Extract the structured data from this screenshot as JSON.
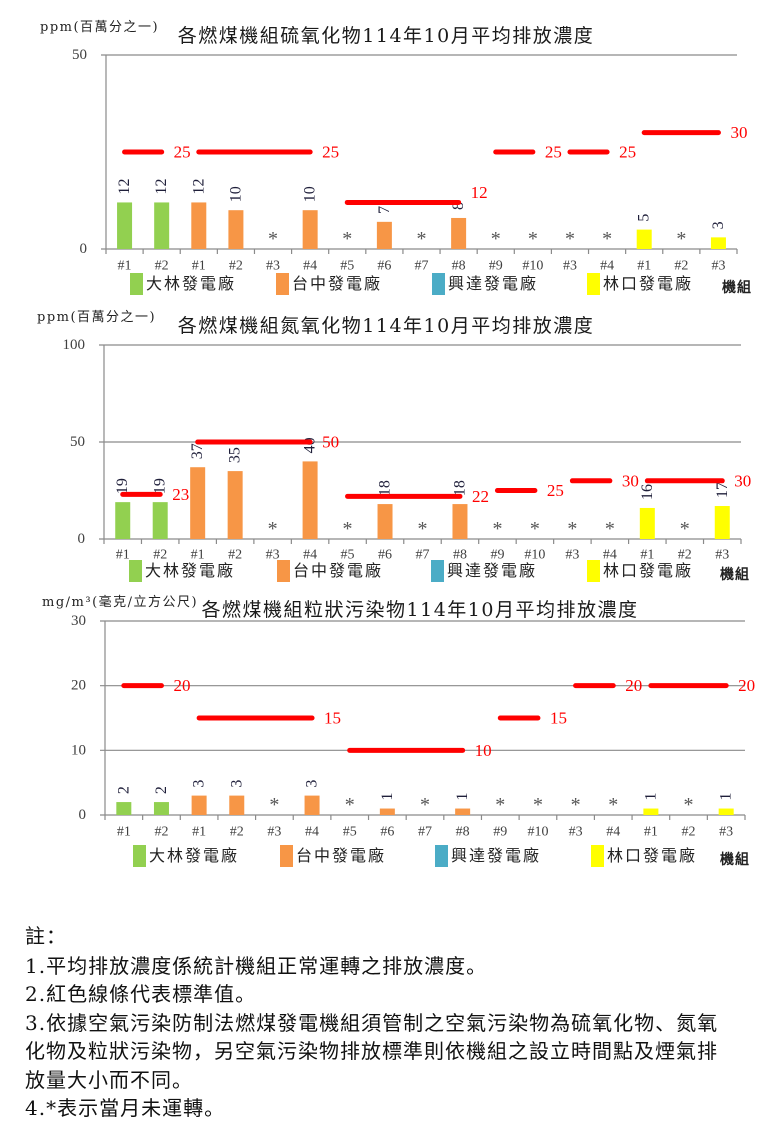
{
  "chart_data": [
    {
      "type": "bar",
      "title": "各燃煤機組硫氧化物114年10月平均排放濃度",
      "ylabel": "ppm(百萬分之一)",
      "xlabel": "機組",
      "ylim": [
        0,
        50
      ],
      "y_ticks": [
        0,
        50
      ],
      "grid": true,
      "legend_position": "bottom",
      "categories": [
        "#1",
        "#2",
        "#1",
        "#2",
        "#3",
        "#4",
        "#5",
        "#6",
        "#7",
        "#8",
        "#9",
        "#10",
        "#3",
        "#4",
        "#1",
        "#2",
        "#3"
      ],
      "series": [
        {
          "name": "大林發電廠",
          "color": "#92D050",
          "category_range": [
            0,
            1
          ],
          "values": [
            12,
            12
          ]
        },
        {
          "name": "台中發電廠",
          "color": "#F79646",
          "category_range": [
            2,
            11
          ],
          "values": [
            12,
            10,
            null,
            10,
            null,
            7,
            null,
            8,
            null,
            null
          ]
        },
        {
          "name": "興達發電廠",
          "color": "#4BACC6",
          "category_range": [
            12,
            13
          ],
          "values": [
            null,
            null
          ]
        },
        {
          "name": "林口發電廠",
          "color": "#FFFF00",
          "category_range": [
            14,
            16
          ],
          "values": [
            5,
            null,
            3
          ]
        }
      ],
      "not_operating_marker": "*",
      "standard_color": "#FF0000",
      "standards": [
        {
          "value": 25,
          "label": "25",
          "category_range": [
            0,
            1
          ]
        },
        {
          "value": 25,
          "label": "25",
          "category_range": [
            2,
            5
          ]
        },
        {
          "value": 12,
          "label": "12",
          "category_range": [
            6,
            9
          ],
          "label_offset_y": -10
        },
        {
          "value": 25,
          "label": "25",
          "category_range": [
            10,
            11
          ]
        },
        {
          "value": 25,
          "label": "25",
          "category_range": [
            12,
            13
          ]
        },
        {
          "value": 30,
          "label": "30",
          "category_range": [
            14,
            16
          ]
        }
      ]
    },
    {
      "type": "bar",
      "title": "各燃煤機組氮氧化物114年10月平均排放濃度",
      "ylabel": "ppm(百萬分之一)",
      "xlabel": "機組",
      "ylim": [
        0,
        100
      ],
      "y_ticks": [
        0,
        50,
        100
      ],
      "grid": true,
      "legend_position": "bottom",
      "categories": [
        "#1",
        "#2",
        "#1",
        "#2",
        "#3",
        "#4",
        "#5",
        "#6",
        "#7",
        "#8",
        "#9",
        "#10",
        "#3",
        "#4",
        "#1",
        "#2",
        "#3"
      ],
      "series": [
        {
          "name": "大林發電廠",
          "color": "#92D050",
          "category_range": [
            0,
            1
          ],
          "values": [
            19,
            19
          ]
        },
        {
          "name": "台中發電廠",
          "color": "#F79646",
          "category_range": [
            2,
            11
          ],
          "values": [
            37,
            35,
            null,
            40,
            null,
            18,
            null,
            18,
            null,
            null
          ]
        },
        {
          "name": "興達發電廠",
          "color": "#4BACC6",
          "category_range": [
            12,
            13
          ],
          "values": [
            null,
            null
          ]
        },
        {
          "name": "林口發電廠",
          "color": "#FFFF00",
          "category_range": [
            14,
            16
          ],
          "values": [
            16,
            null,
            17
          ]
        }
      ],
      "not_operating_marker": "*",
      "standard_color": "#FF0000",
      "standards": [
        {
          "value": 23,
          "label": "23",
          "category_range": [
            0,
            1
          ]
        },
        {
          "value": 50,
          "label": "50",
          "category_range": [
            2,
            5
          ]
        },
        {
          "value": 22,
          "label": "22",
          "category_range": [
            6,
            9
          ]
        },
        {
          "value": 25,
          "label": "25",
          "category_range": [
            10,
            11
          ]
        },
        {
          "value": 30,
          "label": "30",
          "category_range": [
            12,
            13
          ]
        },
        {
          "value": 30,
          "label": "30",
          "category_range": [
            14,
            16
          ]
        }
      ]
    },
    {
      "type": "bar",
      "title": "各燃煤機組粒狀污染物114年10月平均排放濃度",
      "ylabel": "mg/m³(毫克/立方公尺)",
      "xlabel": "機組",
      "ylim": [
        0,
        30
      ],
      "y_ticks": [
        0,
        10,
        20,
        30
      ],
      "grid": true,
      "legend_position": "bottom",
      "categories": [
        "#1",
        "#2",
        "#1",
        "#2",
        "#3",
        "#4",
        "#5",
        "#6",
        "#7",
        "#8",
        "#9",
        "#10",
        "#3",
        "#4",
        "#1",
        "#2",
        "#3"
      ],
      "series": [
        {
          "name": "大林發電廠",
          "color": "#92D050",
          "category_range": [
            0,
            1
          ],
          "values": [
            2,
            2
          ]
        },
        {
          "name": "台中發電廠",
          "color": "#F79646",
          "category_range": [
            2,
            11
          ],
          "values": [
            3,
            3,
            null,
            3,
            null,
            1,
            null,
            1,
            null,
            null
          ]
        },
        {
          "name": "興達發電廠",
          "color": "#4BACC6",
          "category_range": [
            12,
            13
          ],
          "values": [
            null,
            null
          ]
        },
        {
          "name": "林口發電廠",
          "color": "#FFFF00",
          "category_range": [
            14,
            16
          ],
          "values": [
            1,
            null,
            1
          ]
        }
      ],
      "not_operating_marker": "*",
      "standard_color": "#FF0000",
      "standards": [
        {
          "value": 20,
          "label": "20",
          "category_range": [
            0,
            1
          ]
        },
        {
          "value": 15,
          "label": "15",
          "category_range": [
            2,
            5
          ]
        },
        {
          "value": 10,
          "label": "10",
          "category_range": [
            6,
            9
          ]
        },
        {
          "value": 15,
          "label": "15",
          "category_range": [
            10,
            11
          ]
        },
        {
          "value": 20,
          "label": "20",
          "category_range": [
            12,
            13
          ]
        },
        {
          "value": 20,
          "label": "20",
          "category_range": [
            14,
            16
          ]
        }
      ]
    }
  ],
  "notes": {
    "heading": "註：",
    "lines": [
      "1.平均排放濃度係統計機組正常運轉之排放濃度。",
      "2.紅色線條代表標準值。",
      "3.依據空氣污染防制法燃煤發電機組須管制之空氣污染物為硫氧化物、氮氧",
      "化物及粒狀污染物，另空氣污染物排放標準則依機組之設立時間點及煙氣排",
      "放量大小而不同。",
      "4.*表示當月未運轉。"
    ]
  }
}
